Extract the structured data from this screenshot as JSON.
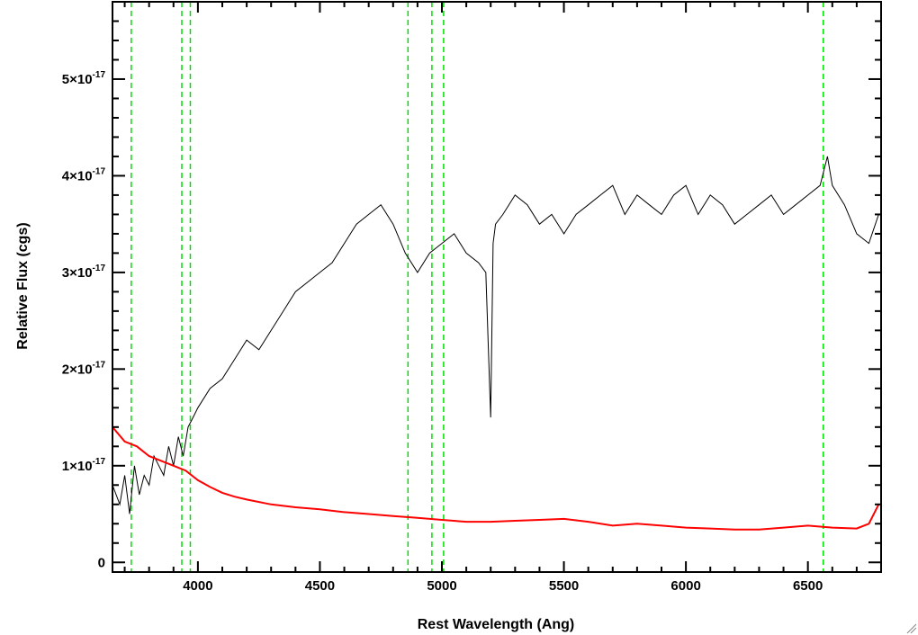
{
  "chart_data": {
    "type": "line",
    "xlabel": "Rest Wavelength (Ang)",
    "ylabel": "Relative Flux (cgs)",
    "xlim": [
      3650,
      6800
    ],
    "ylim": [
      -0.1,
      5.8
    ],
    "y_multiplier": "1e-17",
    "grid": false,
    "legend": "none",
    "x_ticks": [
      {
        "value": 4000,
        "label": "4000"
      },
      {
        "value": 4500,
        "label": "4500"
      },
      {
        "value": 5000,
        "label": "5000"
      },
      {
        "value": 5500,
        "label": "5500"
      },
      {
        "value": 6000,
        "label": "6000"
      },
      {
        "value": 6500,
        "label": "6500"
      }
    ],
    "y_ticks": [
      {
        "value": 0,
        "mant": "0",
        "exp": ""
      },
      {
        "value": 1,
        "mant": "1×10",
        "exp": "-17"
      },
      {
        "value": 2,
        "mant": "2×10",
        "exp": "-17"
      },
      {
        "value": 3,
        "mant": "3×10",
        "exp": "-17"
      },
      {
        "value": 4,
        "mant": "4×10",
        "exp": "-17"
      },
      {
        "value": 5,
        "mant": "5×10",
        "exp": "-17"
      }
    ],
    "vertical_lines": {
      "color": "#00e000",
      "style": "dashed",
      "x": [
        3727,
        3934,
        3969,
        4861,
        4959,
        5007,
        6563
      ]
    },
    "series": [
      {
        "color": "#000000",
        "x": [
          3650,
          3680,
          3700,
          3720,
          3740,
          3760,
          3780,
          3800,
          3820,
          3840,
          3860,
          3880,
          3900,
          3920,
          3940,
          3960,
          3980,
          4000,
          4050,
          4100,
          4150,
          4200,
          4250,
          4300,
          4350,
          4400,
          4450,
          4500,
          4550,
          4600,
          4650,
          4700,
          4750,
          4800,
          4850,
          4900,
          4950,
          5000,
          5050,
          5100,
          5150,
          5180,
          5200,
          5210,
          5220,
          5250,
          5300,
          5350,
          5400,
          5450,
          5500,
          5550,
          5600,
          5650,
          5700,
          5750,
          5800,
          5850,
          5900,
          5950,
          6000,
          6050,
          6100,
          6150,
          6200,
          6250,
          6300,
          6350,
          6400,
          6450,
          6500,
          6550,
          6580,
          6600,
          6650,
          6700,
          6750,
          6790
        ],
        "y": [
          0.8,
          0.6,
          0.9,
          0.5,
          1.0,
          0.7,
          0.9,
          0.8,
          1.1,
          1.0,
          0.9,
          1.2,
          1.0,
          1.3,
          1.1,
          1.4,
          1.5,
          1.6,
          1.8,
          1.9,
          2.1,
          2.3,
          2.2,
          2.4,
          2.6,
          2.8,
          2.9,
          3.0,
          3.1,
          3.3,
          3.5,
          3.6,
          3.7,
          3.5,
          3.2,
          3.0,
          3.2,
          3.3,
          3.4,
          3.2,
          3.1,
          3.0,
          1.5,
          3.3,
          3.5,
          3.6,
          3.8,
          3.7,
          3.5,
          3.6,
          3.4,
          3.6,
          3.7,
          3.8,
          3.9,
          3.6,
          3.8,
          3.7,
          3.6,
          3.8,
          3.9,
          3.6,
          3.8,
          3.7,
          3.5,
          3.6,
          3.7,
          3.8,
          3.6,
          3.7,
          3.8,
          3.9,
          4.2,
          3.9,
          3.7,
          3.4,
          3.3,
          3.6
        ]
      },
      {
        "color": "#ff0000",
        "x": [
          3650,
          3700,
          3750,
          3800,
          3850,
          3900,
          3950,
          4000,
          4050,
          4100,
          4150,
          4200,
          4300,
          4400,
          4500,
          4600,
          4700,
          4800,
          4900,
          5000,
          5100,
          5200,
          5300,
          5400,
          5500,
          5600,
          5700,
          5800,
          5900,
          6000,
          6100,
          6200,
          6300,
          6400,
          6500,
          6600,
          6700,
          6750,
          6790
        ],
        "y": [
          1.4,
          1.25,
          1.2,
          1.1,
          1.05,
          1.0,
          0.95,
          0.85,
          0.78,
          0.72,
          0.68,
          0.65,
          0.6,
          0.57,
          0.55,
          0.52,
          0.5,
          0.48,
          0.46,
          0.44,
          0.42,
          0.42,
          0.43,
          0.44,
          0.45,
          0.42,
          0.38,
          0.4,
          0.38,
          0.36,
          0.35,
          0.34,
          0.34,
          0.36,
          0.38,
          0.36,
          0.35,
          0.4,
          0.6
        ]
      }
    ]
  }
}
